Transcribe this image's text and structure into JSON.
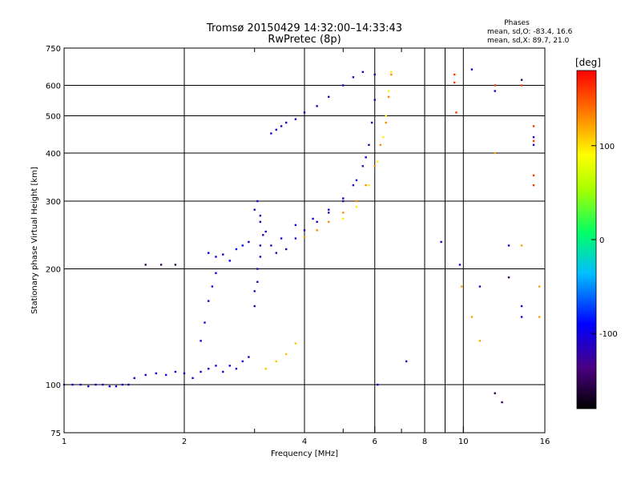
{
  "chart_data": {
    "type": "scatter",
    "title": "Tromsø 20150429 14:32:00–14:33:43",
    "subtitle": "RwPretec (8p)",
    "stats": {
      "heading": "Phases",
      "line_o": "mean, sd,O: -83.4, 16.6",
      "line_x": "mean, sd,X:  89.7, 21.0"
    },
    "xlabel": "Frequency [MHz]",
    "ylabel": "Stationary phase Virtual Height [km]",
    "xscale": "log",
    "yscale": "log",
    "xlim": [
      1,
      16
    ],
    "ylim": [
      75,
      750
    ],
    "x_ticks": [
      1,
      2,
      4,
      6,
      8,
      9,
      10,
      16
    ],
    "x_tick_labels": [
      "1",
      "2",
      "4",
      "6",
      "8",
      "",
      "10",
      "16"
    ],
    "x_minor": [
      3,
      5,
      7
    ],
    "y_ticks": [
      75,
      100,
      200,
      300,
      400,
      500,
      600,
      750
    ],
    "y_tick_labels": [
      "75",
      "100",
      "200",
      "300",
      "400",
      "500",
      "600",
      "750"
    ],
    "grid": true,
    "colorbar": {
      "label": "[deg]",
      "range": [
        -180,
        180
      ],
      "ticks": [
        100,
        0,
        -100
      ],
      "tick_labels": [
        "100",
        "0",
        "-100"
      ]
    },
    "traces": [
      {
        "name": "",
        "phase": -110,
        "points": [
          [
            1.0,
            100
          ],
          [
            1.05,
            100
          ],
          [
            1.1,
            100
          ],
          [
            1.15,
            99
          ],
          [
            1.2,
            100
          ],
          [
            1.25,
            100
          ],
          [
            1.3,
            99
          ],
          [
            1.35,
            99
          ],
          [
            1.4,
            100
          ],
          [
            1.45,
            100
          ]
        ]
      },
      {
        "name": "",
        "phase": -105,
        "points": [
          [
            1.5,
            104
          ],
          [
            1.6,
            106
          ],
          [
            1.7,
            107
          ],
          [
            1.8,
            106
          ],
          [
            1.9,
            108
          ],
          [
            2.0,
            107
          ],
          [
            2.1,
            104
          ],
          [
            2.2,
            108
          ],
          [
            2.3,
            110
          ],
          [
            2.4,
            112
          ],
          [
            2.5,
            108
          ],
          [
            2.6,
            112
          ],
          [
            2.7,
            110
          ],
          [
            2.8,
            115
          ],
          [
            2.9,
            118
          ]
        ]
      },
      {
        "name": "",
        "phase": -100,
        "points": [
          [
            2.2,
            130
          ],
          [
            2.25,
            145
          ],
          [
            2.3,
            165
          ],
          [
            2.35,
            180
          ],
          [
            2.4,
            195
          ]
        ]
      },
      {
        "name": "",
        "phase": -95,
        "points": [
          [
            2.3,
            220
          ],
          [
            2.4,
            215
          ],
          [
            2.5,
            218
          ],
          [
            2.6,
            210
          ],
          [
            2.7,
            225
          ],
          [
            2.8,
            230
          ],
          [
            2.9,
            235
          ]
        ]
      },
      {
        "name": "",
        "phase": -120,
        "points": [
          [
            3.0,
            160
          ],
          [
            3.0,
            175
          ],
          [
            3.05,
            185
          ],
          [
            3.05,
            200
          ],
          [
            3.1,
            215
          ],
          [
            3.1,
            230
          ],
          [
            3.15,
            245
          ],
          [
            3.1,
            265
          ],
          [
            3.0,
            285
          ],
          [
            3.05,
            300
          ],
          [
            3.1,
            275
          ],
          [
            3.2,
            250
          ],
          [
            3.3,
            230
          ],
          [
            3.4,
            220
          ],
          [
            3.6,
            225
          ],
          [
            3.8,
            240
          ],
          [
            4.0,
            252
          ],
          [
            4.3,
            265
          ],
          [
            4.6,
            280
          ],
          [
            5.0,
            300
          ],
          [
            5.3,
            330
          ],
          [
            5.6,
            370
          ],
          [
            5.8,
            420
          ],
          [
            5.9,
            480
          ],
          [
            6.0,
            550
          ],
          [
            6.0,
            640
          ]
        ]
      },
      {
        "name": "",
        "phase": -100,
        "points": [
          [
            3.5,
            240
          ],
          [
            3.8,
            260
          ],
          [
            4.2,
            270
          ],
          [
            4.6,
            285
          ],
          [
            5.0,
            305
          ],
          [
            5.4,
            340
          ],
          [
            5.7,
            390
          ]
        ]
      },
      {
        "name": "",
        "phase": -110,
        "points": [
          [
            3.3,
            450
          ],
          [
            3.4,
            460
          ],
          [
            3.5,
            470
          ],
          [
            3.6,
            480
          ],
          [
            3.8,
            490
          ],
          [
            4.0,
            510
          ],
          [
            4.3,
            530
          ],
          [
            4.6,
            560
          ],
          [
            5.0,
            600
          ],
          [
            5.3,
            630
          ],
          [
            5.6,
            650
          ]
        ]
      },
      {
        "name": "",
        "phase": 110,
        "points": [
          [
            3.2,
            110
          ],
          [
            3.4,
            115
          ],
          [
            3.6,
            120
          ],
          [
            3.8,
            128
          ]
        ]
      },
      {
        "name": "",
        "phase": 130,
        "points": [
          [
            4.0,
            242
          ],
          [
            4.3,
            252
          ],
          [
            4.6,
            265
          ],
          [
            5.0,
            280
          ],
          [
            5.4,
            300
          ],
          [
            5.7,
            330
          ],
          [
            6.0,
            370
          ],
          [
            6.2,
            420
          ],
          [
            6.4,
            480
          ],
          [
            6.5,
            560
          ],
          [
            6.6,
            640
          ]
        ]
      },
      {
        "name": "",
        "phase": 95,
        "points": [
          [
            5.0,
            270
          ],
          [
            5.4,
            290
          ],
          [
            5.8,
            330
          ],
          [
            6.1,
            380
          ],
          [
            6.3,
            440
          ],
          [
            6.4,
            500
          ],
          [
            6.5,
            580
          ],
          [
            6.6,
            650
          ]
        ]
      },
      {
        "name": "",
        "phase": 160,
        "points": [
          [
            9.5,
            640
          ],
          [
            9.5,
            610
          ],
          [
            9.6,
            510
          ],
          [
            12.0,
            600
          ],
          [
            14.0,
            600
          ],
          [
            15.0,
            470
          ],
          [
            15.0,
            430
          ],
          [
            15.0,
            350
          ],
          [
            15.0,
            330
          ]
        ]
      },
      {
        "name": "",
        "phase": -110,
        "points": [
          [
            8.8,
            235
          ],
          [
            9.8,
            205
          ],
          [
            10.5,
            660
          ],
          [
            11.0,
            180
          ],
          [
            12.0,
            580
          ],
          [
            13.0,
            230
          ],
          [
            14.0,
            160
          ],
          [
            14.0,
            150
          ],
          [
            15.0,
            420
          ],
          [
            15.0,
            440
          ],
          [
            7.2,
            115
          ],
          [
            6.1,
            100
          ]
        ]
      },
      {
        "name": "",
        "phase": -150,
        "points": [
          [
            1.6,
            205
          ],
          [
            1.75,
            205
          ],
          [
            1.9,
            205
          ],
          [
            12.0,
            95
          ],
          [
            12.5,
            90
          ],
          [
            13.0,
            190
          ],
          [
            14.0,
            620
          ]
        ]
      },
      {
        "name": "",
        "phase": 120,
        "points": [
          [
            9.9,
            180
          ],
          [
            10.5,
            150
          ],
          [
            11.0,
            130
          ],
          [
            12.0,
            400
          ],
          [
            14.0,
            230
          ],
          [
            15.5,
            150
          ],
          [
            15.5,
            180
          ]
        ]
      }
    ]
  }
}
